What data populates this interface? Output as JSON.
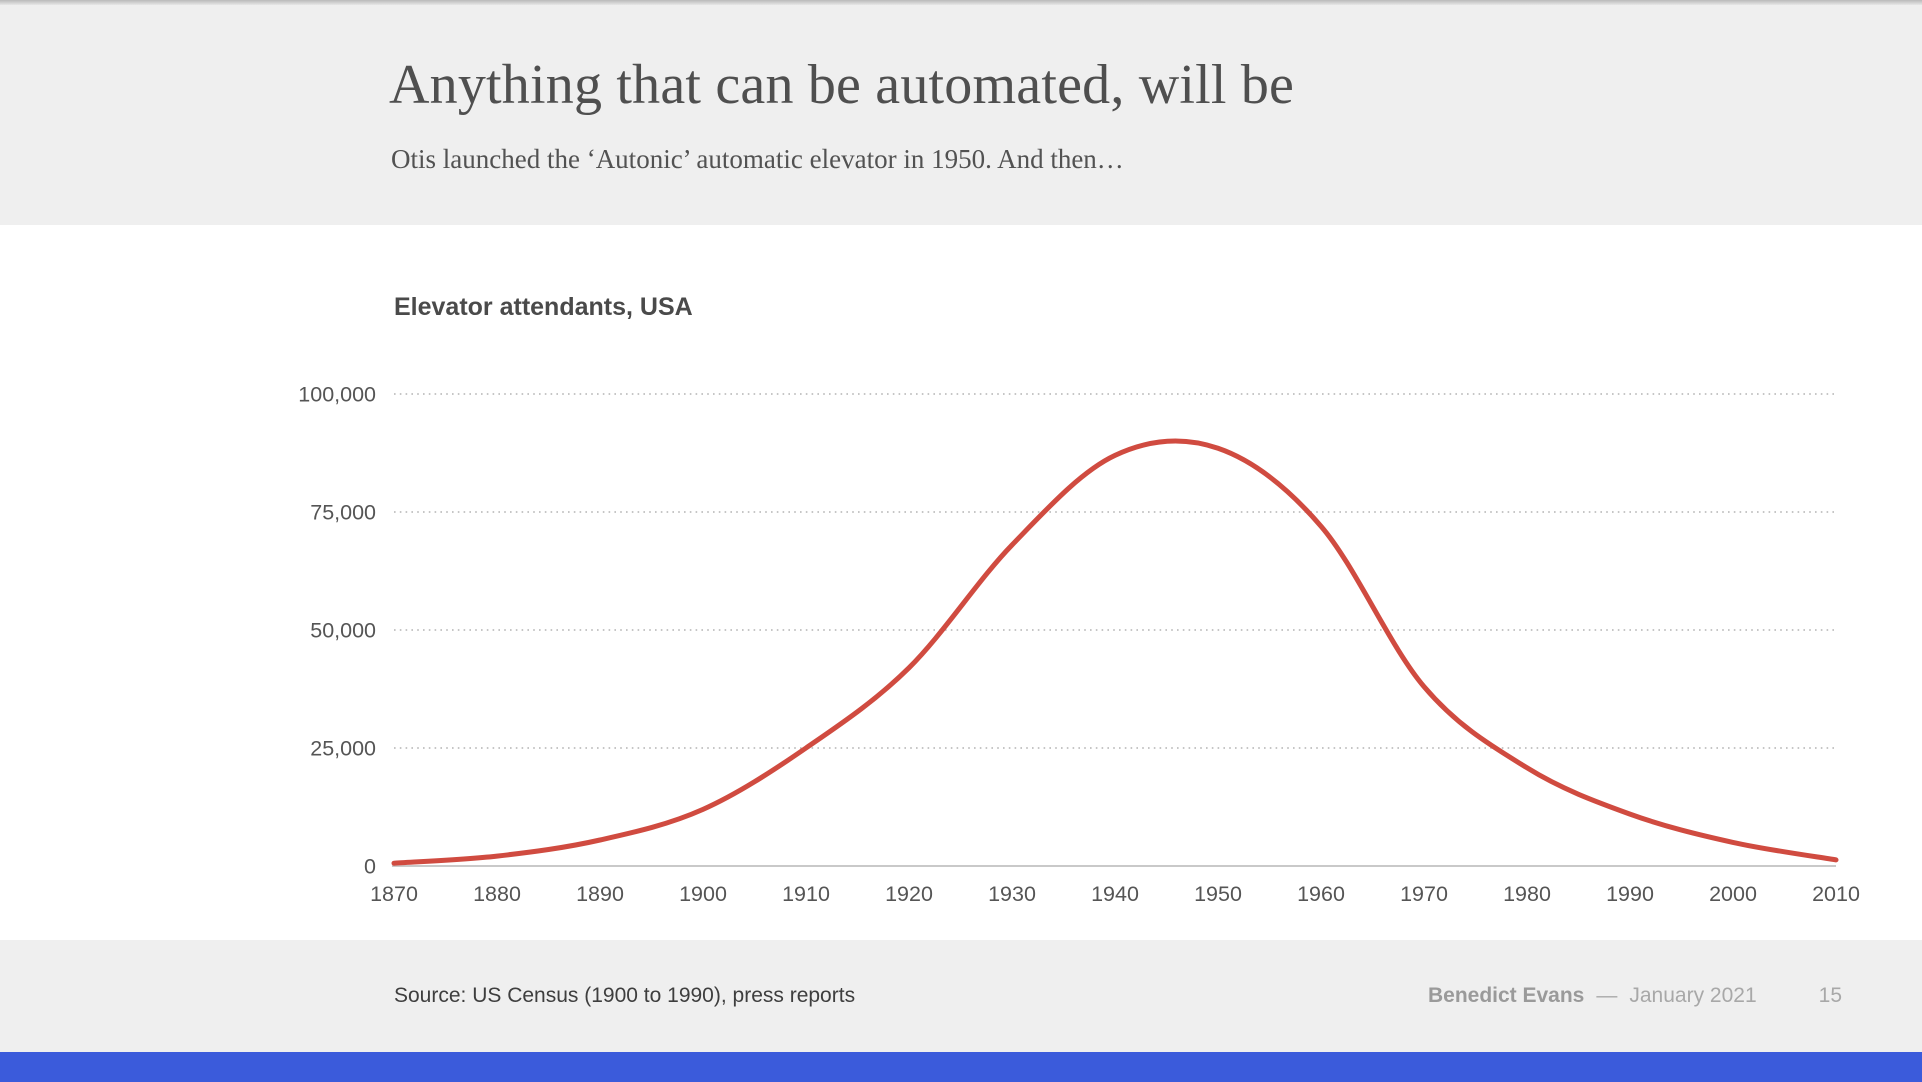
{
  "header": {
    "title": "Anything that can be automated, will be",
    "subtitle": "Otis launched the ‘Autonic’ automatic elevator in 1950. And then…"
  },
  "chart_data": {
    "type": "line",
    "title": "Elevator attendants, USA",
    "x": [
      1870,
      1880,
      1890,
      1900,
      1910,
      1920,
      1930,
      1940,
      1950,
      1960,
      1970,
      1980,
      1990,
      2000,
      2010
    ],
    "values": [
      600,
      2100,
      5500,
      12000,
      25000,
      42000,
      68000,
      87000,
      88500,
      72000,
      38000,
      20800,
      11000,
      5000,
      1300
    ],
    "x_tick_labels": [
      "1870",
      "1880",
      "1890",
      "1900",
      "1910",
      "1920",
      "1930",
      "1940",
      "1950",
      "1960",
      "1970",
      "1980",
      "1990",
      "2000",
      "2010"
    ],
    "y_ticks": [
      0,
      25000,
      50000,
      75000,
      100000
    ],
    "y_tick_labels": [
      "0",
      "25,000",
      "50,000",
      "75,000",
      "100,000"
    ],
    "xlim": [
      1870,
      2010
    ],
    "ylim": [
      0,
      100000
    ],
    "grid": "dotted horizontal gridlines",
    "legend": "none",
    "line_color": "#d04b40",
    "peak_note": "curve peaks near 1947 at about 89,000"
  },
  "footer": {
    "source": "Source: US Census (1900 to 1990), press reports",
    "author": "Benedict Evans",
    "separator": "—",
    "date": "January 2021",
    "page_number": "15"
  },
  "colors": {
    "band_background": "#efefef",
    "accent_line": "#d04b40",
    "bottom_band": "#3b5bdb",
    "title_text": "#4f4f4f",
    "axis_text": "#555555",
    "axis_line": "#c9c9c9",
    "gridline": "#b3b3b3",
    "footer_muted": "#a8a8a8"
  }
}
